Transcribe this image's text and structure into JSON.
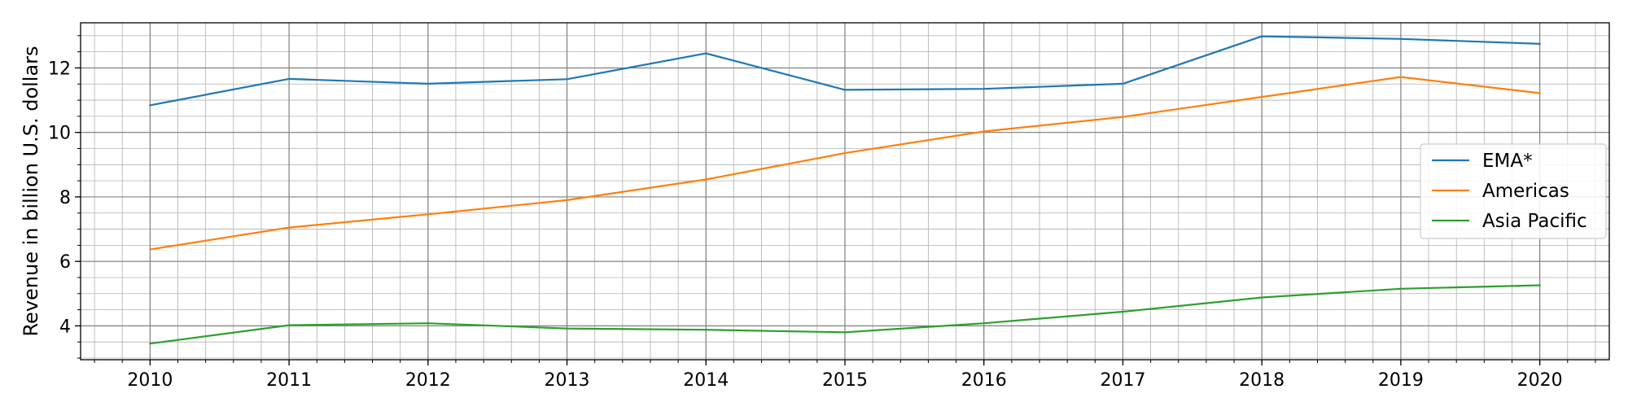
{
  "chart_data": {
    "type": "line",
    "title": "",
    "xlabel": "",
    "ylabel": "Revenue in billion U.S. dollars",
    "x": [
      "2010",
      "2011",
      "2012",
      "2013",
      "2014",
      "2015",
      "2016",
      "2017",
      "2018",
      "2019",
      "2020"
    ],
    "xlim": [
      2009.5,
      2020.5
    ],
    "ylim": [
      2.95,
      13.4
    ],
    "yticks": [
      "4",
      "6",
      "8",
      "10",
      "12"
    ],
    "grid": true,
    "legend_position": "center-right",
    "series": [
      {
        "name": "EMA*",
        "color": "#1f77b4",
        "values": [
          10.84,
          11.66,
          11.51,
          11.65,
          12.45,
          11.32,
          11.35,
          11.51,
          12.98,
          12.9,
          12.75
        ]
      },
      {
        "name": "Americas",
        "color": "#ff7f0e",
        "values": [
          6.37,
          7.05,
          7.46,
          7.9,
          8.54,
          9.36,
          10.03,
          10.48,
          11.1,
          11.72,
          11.22
        ]
      },
      {
        "name": "Asia Pacific",
        "color": "#2ca02c",
        "values": [
          3.45,
          4.02,
          4.08,
          3.92,
          3.88,
          3.8,
          4.08,
          4.44,
          4.88,
          5.15,
          5.26
        ]
      }
    ]
  }
}
